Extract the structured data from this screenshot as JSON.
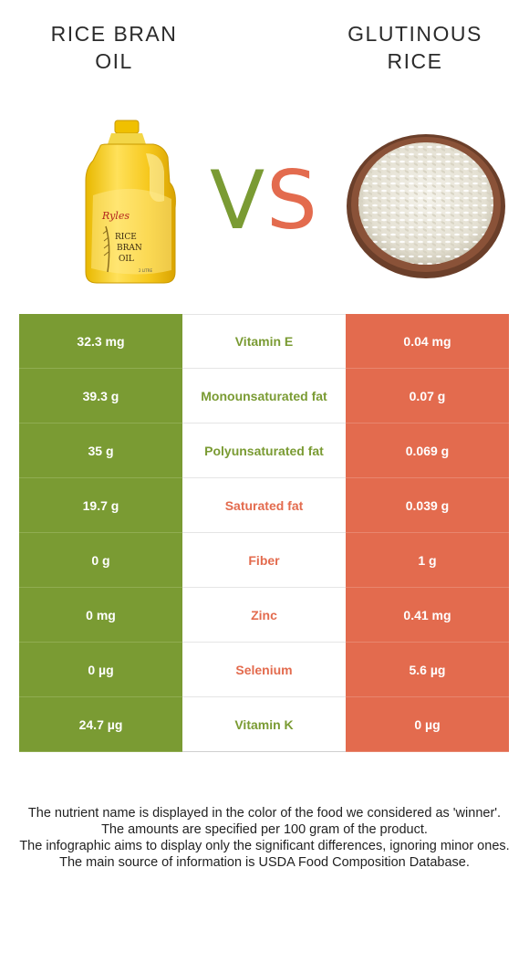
{
  "header": {
    "left_title_line1": "RICE BRAN",
    "left_title_line2": "OIL",
    "right_title_line1": "GLUTINOUS",
    "right_title_line2": "RICE",
    "vs_letter_v": "V",
    "vs_letter_s": "S"
  },
  "bottle_label": {
    "brand": "Ryles",
    "line1": "RICE",
    "line2": "BRAN",
    "line3": "OIL",
    "volume": "2 LITRE"
  },
  "colors": {
    "left_winner": "#7a9b33",
    "right_winner": "#e36b4e"
  },
  "rows": [
    {
      "left": "32.3 mg",
      "nutrient": "Vitamin E",
      "right": "0.04 mg",
      "winner_color": "#7a9b33"
    },
    {
      "left": "39.3 g",
      "nutrient": "Monounsaturated fat",
      "right": "0.07 g",
      "winner_color": "#7a9b33"
    },
    {
      "left": "35 g",
      "nutrient": "Polyunsaturated fat",
      "right": "0.069 g",
      "winner_color": "#7a9b33"
    },
    {
      "left": "19.7 g",
      "nutrient": "Saturated fat",
      "right": "0.039 g",
      "winner_color": "#e36b4e"
    },
    {
      "left": "0 g",
      "nutrient": "Fiber",
      "right": "1 g",
      "winner_color": "#e36b4e"
    },
    {
      "left": "0 mg",
      "nutrient": "Zinc",
      "right": "0.41 mg",
      "winner_color": "#e36b4e"
    },
    {
      "left": "0 µg",
      "nutrient": "Selenium",
      "right": "5.6 µg",
      "winner_color": "#e36b4e"
    },
    {
      "left": "24.7 µg",
      "nutrient": "Vitamin K",
      "right": "0 µg",
      "winner_color": "#7a9b33"
    }
  ],
  "footnote": {
    "line1": "The nutrient name is displayed in the color of the food we considered as 'winner'.",
    "line2": "The amounts are specified per 100 gram of the product.",
    "line3": "The infographic aims to display only the significant differences, ignoring minor ones.",
    "line4": "The main source of information is USDA Food Composition Database."
  }
}
